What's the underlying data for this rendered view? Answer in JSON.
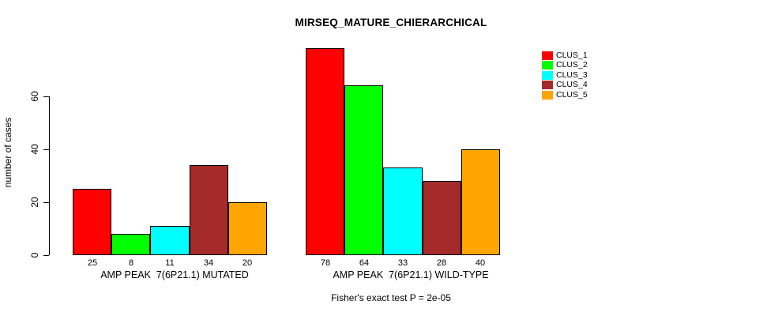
{
  "chart_data": {
    "type": "bar",
    "title": "MIRSEQ_MATURE_CHIERARCHICAL",
    "ylabel": "number of cases",
    "xlabel": "",
    "ylim": [
      0,
      80
    ],
    "yticks": [
      0,
      20,
      40,
      60
    ],
    "grid": false,
    "legend_position": "top-right",
    "bar_border_color": "#000000",
    "background_color": "#ffffff",
    "series": [
      {
        "name": "CLUS_1",
        "color": "#FF0000"
      },
      {
        "name": "CLUS_2",
        "color": "#00FF00"
      },
      {
        "name": "CLUS_3",
        "color": "#00FFFF"
      },
      {
        "name": "CLUS_4",
        "color": "#A52A2A"
      },
      {
        "name": "CLUS_5",
        "color": "#FFA500"
      }
    ],
    "groups": [
      {
        "label": "AMP PEAK  7(6P21.1) MUTATED",
        "values": [
          25,
          8,
          11,
          34,
          20
        ]
      },
      {
        "label": "AMP PEAK  7(6P21.1) WILD-TYPE",
        "values": [
          78,
          64,
          33,
          28,
          40
        ]
      }
    ],
    "annotation": "Fisher's exact test P = 2e-05"
  }
}
